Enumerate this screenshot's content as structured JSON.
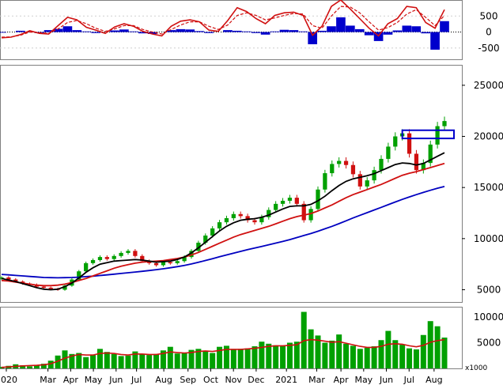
{
  "colors": {
    "border": "#808080",
    "up": "#00a000",
    "down": "#d01010",
    "ma_short": "#000000",
    "ma_mid": "#d01010",
    "ma_long": "#0000c0",
    "macd_hist": "#0000cc",
    "macd_line": "#d01010",
    "volume": "#00a000",
    "volume_ma": "#d01010",
    "highlight_box": "#0000cc"
  },
  "chart_data": [
    {
      "type": "line",
      "panel": "indicator",
      "y_ticks": [
        500,
        0,
        -500
      ],
      "y_tick_labels": [
        "500",
        "0",
        "-500"
      ],
      "ylim": [
        -850,
        1000
      ],
      "x": [
        0,
        12,
        24,
        36,
        48,
        60,
        72,
        84,
        96,
        108,
        120,
        132,
        144,
        156,
        168,
        180,
        192,
        204,
        216,
        228,
        240,
        252,
        264,
        276,
        288,
        300,
        312,
        324,
        336,
        348,
        360,
        372,
        384,
        396,
        408,
        420,
        432,
        444,
        456,
        468,
        480,
        492,
        504,
        516,
        528,
        540,
        552,
        564
      ],
      "series": [
        {
          "kind": "histogram",
          "values": [
            -20,
            0,
            40,
            10,
            -30,
            60,
            100,
            180,
            60,
            20,
            -30,
            0,
            50,
            80,
            20,
            -40,
            -60,
            0,
            60,
            90,
            80,
            30,
            -30,
            0,
            60,
            40,
            20,
            -30,
            -80,
            20,
            70,
            60,
            20,
            -380,
            40,
            180,
            460,
            200,
            90,
            -100,
            -280,
            -80,
            50,
            200,
            180,
            -40,
            -550,
            340
          ]
        },
        {
          "kind": "line",
          "values": [
            -180,
            -160,
            -80,
            40,
            -40,
            -60,
            200,
            460,
            380,
            150,
            60,
            -40,
            160,
            260,
            180,
            20,
            -60,
            -120,
            180,
            340,
            380,
            320,
            60,
            20,
            360,
            760,
            640,
            420,
            260,
            520,
            600,
            620,
            520,
            -100,
            180,
            800,
            1000,
            720,
            420,
            120,
            -120,
            260,
            420,
            800,
            760,
            300,
            120,
            700
          ]
        },
        {
          "kind": "signal",
          "values": [
            -160,
            -150,
            -100,
            0,
            -20,
            -40,
            100,
            300,
            360,
            260,
            120,
            20,
            100,
            200,
            200,
            80,
            0,
            -60,
            80,
            220,
            320,
            320,
            180,
            80,
            220,
            520,
            600,
            520,
            380,
            440,
            520,
            580,
            560,
            200,
            120,
            500,
            800,
            780,
            600,
            320,
            60,
            140,
            300,
            560,
            700,
            460,
            200,
            520
          ]
        }
      ]
    },
    {
      "type": "candlestick",
      "panel": "price",
      "y_ticks": [
        25000,
        20000,
        15000,
        10000,
        5000
      ],
      "y_tick_labels": [
        "25000",
        "20000",
        "15000",
        "10000",
        "5000"
      ],
      "ylim": [
        3800,
        27000
      ],
      "x_labels": [
        "2020",
        "Mar",
        "Apr",
        "May",
        "Jun",
        "Jul",
        "Aug",
        "Sep",
        "Oct",
        "Nov",
        "Dec",
        "2021",
        "Mar",
        "Apr",
        "May",
        "Jun",
        "Jul",
        "Aug"
      ],
      "x_label_index": [
        0,
        55,
        85,
        115,
        145,
        172,
        208,
        240,
        270,
        300,
        330,
        370,
        410,
        442,
        472,
        502,
        532,
        565
      ],
      "candles_close": [
        6200,
        6000,
        5800,
        5600,
        5500,
        5300,
        5200,
        5100,
        5000,
        5400,
        6000,
        6800,
        7600,
        7900,
        8200,
        8000,
        8300,
        8600,
        8800,
        8300,
        7800,
        7600,
        7400,
        7700,
        7600,
        7800,
        8200,
        8800,
        9600,
        10300,
        11000,
        11600,
        12000,
        12400,
        12200,
        11800,
        11600,
        12100,
        12800,
        13400,
        13700,
        14000,
        13400,
        11800,
        12900,
        14800,
        16400,
        17300,
        17600,
        17200,
        16300,
        15100,
        15700,
        16700,
        17800,
        19000,
        20000,
        20300,
        18300,
        16700,
        17400,
        19200,
        21000,
        21500
      ],
      "ma_short": [
        6100,
        5950,
        5800,
        5600,
        5400,
        5200,
        5050,
        5000,
        5050,
        5300,
        5650,
        6150,
        6700,
        7150,
        7500,
        7650,
        7800,
        7850,
        7900,
        7950,
        7900,
        7800,
        7700,
        7750,
        7800,
        7950,
        8200,
        8600,
        9100,
        9650,
        10200,
        10750,
        11200,
        11550,
        11800,
        11900,
        11950,
        12100,
        12300,
        12600,
        12900,
        13150,
        13200,
        13200,
        13350,
        13700,
        14150,
        14700,
        15200,
        15600,
        15850,
        16000,
        16150,
        16350,
        16650,
        16950,
        17250,
        17400,
        17350,
        17200,
        17350,
        17700,
        18050,
        18400
      ],
      "ma_mid": [
        5900,
        5850,
        5750,
        5650,
        5550,
        5450,
        5400,
        5400,
        5450,
        5550,
        5700,
        5900,
        6100,
        6350,
        6600,
        6850,
        7100,
        7300,
        7450,
        7600,
        7700,
        7750,
        7800,
        7850,
        7950,
        8050,
        8200,
        8400,
        8650,
        8950,
        9250,
        9550,
        9850,
        10150,
        10400,
        10600,
        10800,
        11000,
        11200,
        11450,
        11700,
        11950,
        12150,
        12300,
        12450,
        12700,
        13000,
        13300,
        13650,
        14000,
        14300,
        14550,
        14800,
        15050,
        15300,
        15600,
        15900,
        16200,
        16400,
        16550,
        16750,
        16950,
        17150,
        17350
      ],
      "ma_long": [
        6500,
        6450,
        6400,
        6350,
        6300,
        6250,
        6200,
        6180,
        6170,
        6180,
        6200,
        6230,
        6280,
        6330,
        6390,
        6450,
        6520,
        6590,
        6660,
        6730,
        6800,
        6880,
        6960,
        7050,
        7150,
        7260,
        7380,
        7520,
        7680,
        7860,
        8040,
        8220,
        8400,
        8580,
        8750,
        8920,
        9080,
        9240,
        9400,
        9560,
        9720,
        9900,
        10100,
        10300,
        10500,
        10720,
        10960,
        11200,
        11460,
        11740,
        12020,
        12280,
        12540,
        12800,
        13060,
        13320,
        13580,
        13840,
        14080,
        14300,
        14520,
        14730,
        14930,
        15100
      ],
      "highlight_range": [
        19800,
        20600
      ]
    },
    {
      "type": "bar",
      "panel": "volume",
      "y_ticks": [
        10000,
        5000
      ],
      "y_tick_labels": [
        "10000",
        "5000"
      ],
      "ylim": [
        0,
        12000
      ],
      "unit": "x1000",
      "values": [
        300,
        500,
        800,
        600,
        400,
        600,
        900,
        1500,
        2500,
        3500,
        2800,
        3000,
        2200,
        2600,
        3800,
        3200,
        2800,
        2400,
        2500,
        3300,
        2700,
        2600,
        2800,
        3500,
        4200,
        2900,
        3000,
        3600,
        3800,
        3400,
        3000,
        4200,
        4400,
        3700,
        3800,
        3900,
        4300,
        5200,
        4800,
        4500,
        4300,
        5000,
        5200,
        11000,
        7600,
        6400,
        5000,
        5400,
        6600,
        4800,
        4400,
        3800,
        4000,
        4300,
        5500,
        7300,
        5500,
        4600,
        3900,
        3700,
        6500,
        9200,
        8200,
        6000
      ],
      "ma": [
        200,
        300,
        400,
        500,
        550,
        600,
        700,
        900,
        1400,
        2000,
        2400,
        2700,
        2600,
        2600,
        2900,
        3000,
        2900,
        2700,
        2600,
        2800,
        2800,
        2700,
        2700,
        2900,
        3200,
        3100,
        3000,
        3100,
        3300,
        3400,
        3300,
        3500,
        3700,
        3700,
        3700,
        3800,
        3900,
        4100,
        4300,
        4400,
        4400,
        4500,
        4600,
        5400,
        5600,
        5500,
        5300,
        5100,
        5200,
        4900,
        4600,
        4300,
        4100,
        4100,
        4300,
        4700,
        4800,
        4700,
        4400,
        4200,
        4500,
        5100,
        5400,
        5600
      ]
    }
  ]
}
